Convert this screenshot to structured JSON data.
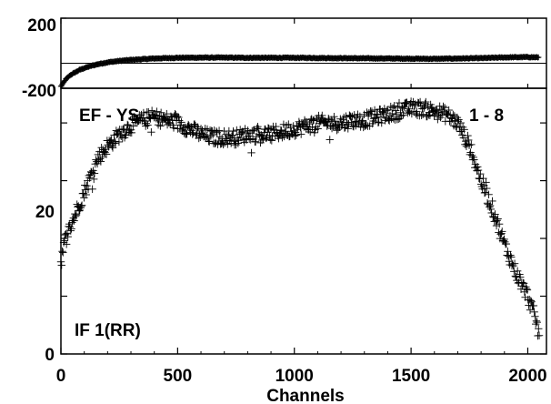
{
  "chart_data": [
    {
      "type": "scatter",
      "panel": "phase",
      "ylim": [
        -200,
        200
      ],
      "xlim": [
        0,
        2080
      ],
      "y_tick_labels": [
        "200",
        "-200"
      ],
      "marker": "plus",
      "series": [
        {
          "x": [
            0,
            20,
            40,
            60,
            80,
            100,
            130,
            160,
            200,
            250,
            300,
            400,
            500,
            600,
            700,
            800,
            900,
            1000,
            1100,
            1200,
            1300,
            1400,
            1500,
            1600,
            1700,
            1800,
            1900,
            2000,
            2048
          ],
          "values": [
            -190,
            -150,
            -125,
            -110,
            -95,
            -85,
            -72,
            -62,
            -52,
            -44,
            -38,
            -30,
            -26,
            -25,
            -25,
            -26,
            -26,
            -26,
            -27,
            -28,
            -29,
            -30,
            -31,
            -32,
            -30,
            -28,
            -24,
            -22,
            -24
          ]
        }
      ],
      "reference_line": -57
    },
    {
      "type": "scatter",
      "panel": "amplitude",
      "ylim": [
        0,
        46
      ],
      "xlim": [
        0,
        2080
      ],
      "y_tick_labels": [
        "0",
        "20",
        "-200"
      ],
      "xlabel": "Channels",
      "x_tick_labels": [
        "0",
        "500",
        "1000",
        "1500",
        "2000"
      ],
      "marker": "plus",
      "annotations": [
        "EF - YS",
        "1 - 8",
        "IF 1(RR)"
      ],
      "series": [
        {
          "x": [
            0,
            20,
            50,
            80,
            120,
            160,
            200,
            250,
            300,
            350,
            400,
            450,
            500,
            550,
            600,
            650,
            700,
            750,
            800,
            850,
            900,
            950,
            1000,
            1050,
            1100,
            1150,
            1200,
            1250,
            1300,
            1350,
            1400,
            1450,
            1500,
            1550,
            1600,
            1650,
            1700,
            1750,
            1800,
            1850,
            1900,
            1950,
            2000,
            2030,
            2050
          ],
          "values": [
            16,
            20,
            23,
            26,
            30,
            34,
            36,
            38,
            39.5,
            40.5,
            41,
            40.5,
            40,
            39,
            38,
            37.5,
            37.5,
            37.5,
            38,
            38,
            38,
            38.5,
            39,
            39.5,
            40,
            40,
            40,
            40.5,
            40.5,
            41,
            41.5,
            42,
            42.5,
            42.5,
            42,
            41.5,
            40,
            36,
            30,
            25,
            19,
            14,
            10,
            6.5,
            3
          ]
        }
      ]
    }
  ]
}
